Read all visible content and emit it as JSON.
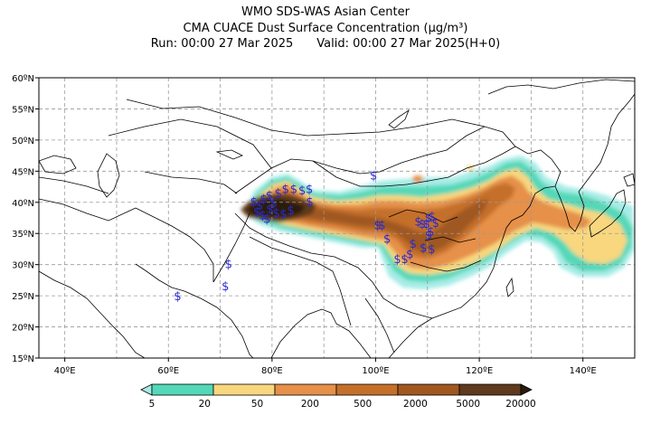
{
  "header": {
    "line1": "WMO SDS-WAS Asian Center",
    "line2": "CMA CUACE Dust Surface Concentration (μg/m³)",
    "run": "Run: 00:00 27 Mar 2025",
    "valid": "Valid: 00:00 27 Mar 2025(H+0)"
  },
  "map": {
    "lon_range": [
      35,
      150
    ],
    "lat_range": [
      15,
      60
    ],
    "lon_ticks": [
      "40ºE",
      "60ºE",
      "80ºE",
      "100ºE",
      "120ºE",
      "140ºE"
    ],
    "lat_ticks": [
      "15ºN",
      "20ºN",
      "25ºN",
      "30ºN",
      "35ºN",
      "40ºN",
      "45ºN",
      "50ºN",
      "55ºN",
      "60ºN"
    ],
    "grid": true,
    "station_symbol": "$",
    "station_color": "#2a2ad0",
    "stations": [
      {
        "lon": 76.5,
        "lat": 40.2
      },
      {
        "lon": 77.6,
        "lat": 39.6
      },
      {
        "lon": 78.4,
        "lat": 40.6
      },
      {
        "lon": 79.5,
        "lat": 41.2
      },
      {
        "lon": 80.3,
        "lat": 40.0
      },
      {
        "lon": 81.2,
        "lat": 41.6
      },
      {
        "lon": 82.6,
        "lat": 42.2
      },
      {
        "lon": 84.2,
        "lat": 42.2
      },
      {
        "lon": 85.8,
        "lat": 42.0
      },
      {
        "lon": 87.2,
        "lat": 42.2
      },
      {
        "lon": 77.1,
        "lat": 38.6
      },
      {
        "lon": 78.2,
        "lat": 38.0
      },
      {
        "lon": 79.6,
        "lat": 39.0
      },
      {
        "lon": 79.0,
        "lat": 37.4
      },
      {
        "lon": 80.8,
        "lat": 38.4
      },
      {
        "lon": 82.2,
        "lat": 38.2
      },
      {
        "lon": 83.6,
        "lat": 38.8
      },
      {
        "lon": 87.3,
        "lat": 40.2
      },
      {
        "lon": 99.6,
        "lat": 44.4
      },
      {
        "lon": 100.4,
        "lat": 36.4
      },
      {
        "lon": 101.2,
        "lat": 36.4
      },
      {
        "lon": 102.2,
        "lat": 34.2
      },
      {
        "lon": 104.2,
        "lat": 31.0
      },
      {
        "lon": 105.6,
        "lat": 31.0
      },
      {
        "lon": 106.6,
        "lat": 31.8
      },
      {
        "lon": 107.2,
        "lat": 33.4
      },
      {
        "lon": 108.2,
        "lat": 37.0
      },
      {
        "lon": 109.0,
        "lat": 36.6
      },
      {
        "lon": 109.8,
        "lat": 36.6
      },
      {
        "lon": 110.2,
        "lat": 37.6
      },
      {
        "lon": 110.9,
        "lat": 37.8
      },
      {
        "lon": 111.6,
        "lat": 36.8
      },
      {
        "lon": 110.6,
        "lat": 35.4
      },
      {
        "lon": 110.2,
        "lat": 34.8
      },
      {
        "lon": 110.8,
        "lat": 32.6
      },
      {
        "lon": 109.2,
        "lat": 32.8
      },
      {
        "lon": 71.6,
        "lat": 30.2
      },
      {
        "lon": 71.0,
        "lat": 26.6
      },
      {
        "lon": 61.8,
        "lat": 25.0
      }
    ]
  },
  "colorbar": {
    "colors": [
      "#a6ece6",
      "#54d8b8",
      "#f8d77e",
      "#e6904a",
      "#c4702a",
      "#a05820",
      "#5f3a1e",
      "#2a1a0e"
    ],
    "labels": [
      "5",
      "20",
      "50",
      "200",
      "500",
      "2000",
      "5000",
      "20000"
    ]
  }
}
